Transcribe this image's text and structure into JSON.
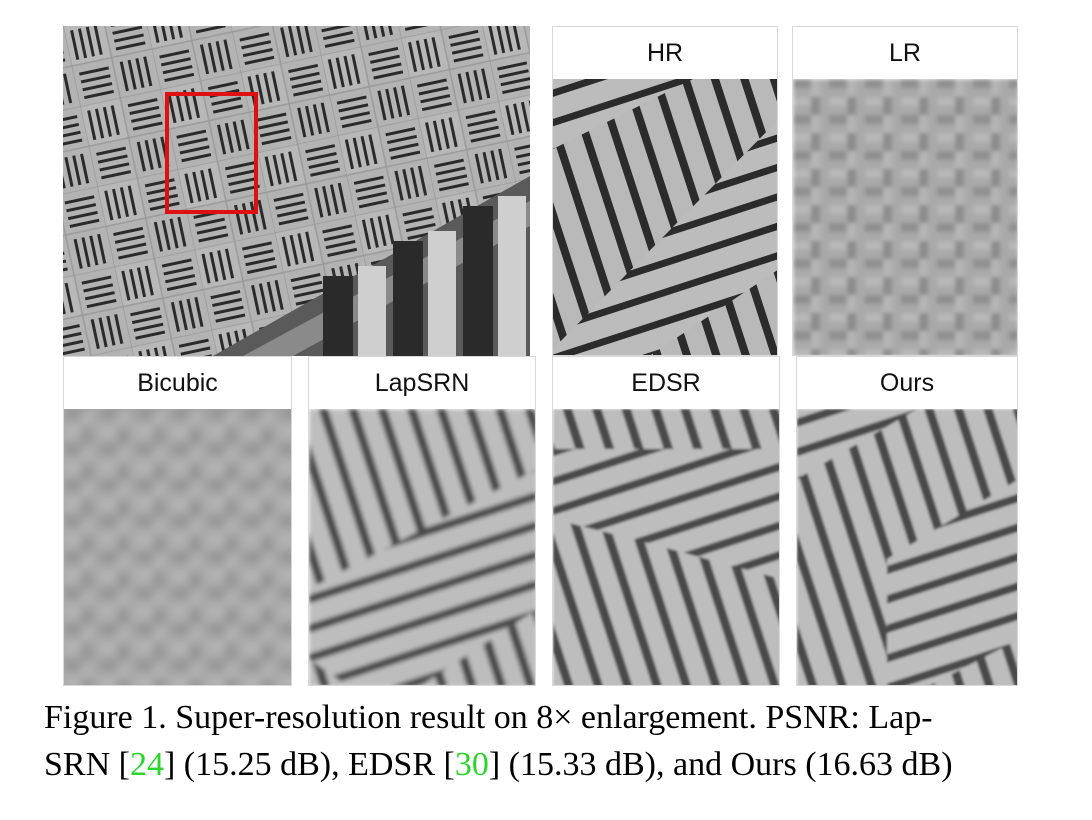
{
  "figure": {
    "panels": [
      {
        "id": "hr",
        "label": "HR"
      },
      {
        "id": "lr",
        "label": "LR"
      },
      {
        "id": "bicubic",
        "label": "Bicubic"
      },
      {
        "id": "lapsrn",
        "label": "LapSRN"
      },
      {
        "id": "edsr",
        "label": "EDSR"
      },
      {
        "id": "ours",
        "label": "Ours"
      }
    ],
    "colors": {
      "selection_box": "#e01010",
      "citation": "#2bd62b",
      "surface": "#b9b9b9",
      "groove": "#2b2b2b"
    },
    "caption": {
      "line1": "Figure 1. Super-resolution result on 8× enlargement. PSNR: Lap-",
      "line2_a": "SRN [",
      "ref1": "24",
      "line2_b": "] (15.25 dB), EDSR [",
      "ref2": "30",
      "line2_c": "] (15.33 dB), and Ours (16.63 dB)"
    }
  }
}
